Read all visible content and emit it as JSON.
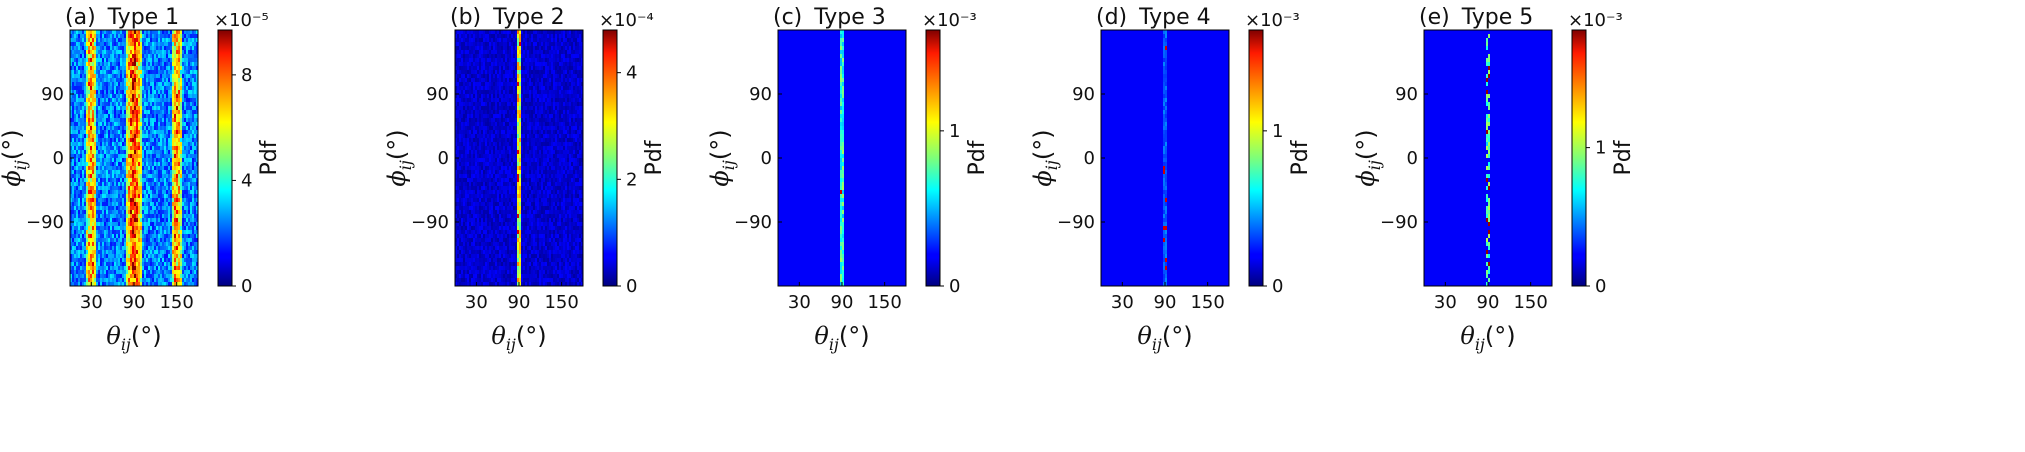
{
  "chart_data": [
    {
      "type": "heatmap",
      "panel_label": "(a)",
      "title": "Type 1",
      "xlabel": "θ_ij(°)",
      "ylabel": "ϕ_ij(°)",
      "xlim": [
        0,
        180
      ],
      "ylim": [
        -180,
        180
      ],
      "x_ticks": [
        30,
        90,
        150
      ],
      "y_ticks": [
        90,
        0,
        -90
      ],
      "y_tick_labels": [
        "90",
        "0",
        "−90"
      ],
      "colorbar": {
        "label": "Pdf",
        "exponent": "×10⁻⁵",
        "ticks": [
          "0",
          "4",
          "8"
        ],
        "tick_values": [
          0,
          4,
          8
        ],
        "max": 9.7,
        "scale": 1e-05
      },
      "pattern": "broad",
      "bands": [
        {
          "theta": 30,
          "width": 6,
          "intensity": 0.45
        },
        {
          "theta": 90,
          "width": 9,
          "intensity": 0.55
        },
        {
          "theta": 150,
          "width": 6,
          "intensity": 0.45
        }
      ],
      "background_level": 0.25
    },
    {
      "type": "heatmap",
      "panel_label": "(b)",
      "title": "Type 2",
      "xlabel": "θ_ij(°)",
      "ylabel": "ϕ_ij(°)",
      "xlim": [
        0,
        180
      ],
      "ylim": [
        -180,
        180
      ],
      "x_ticks": [
        30,
        90,
        150
      ],
      "y_ticks": [
        90,
        0,
        -90
      ],
      "y_tick_labels": [
        "90",
        "0",
        "−90"
      ],
      "colorbar": {
        "label": "Pdf",
        "exponent": "×10⁻⁴",
        "ticks": [
          "0",
          "2",
          "4"
        ],
        "tick_values": [
          0,
          2,
          4
        ],
        "max": 4.8,
        "scale": 0.0001
      },
      "pattern": "line",
      "bands": [
        {
          "theta": 90,
          "width": 1.5,
          "intensity": 0.8
        }
      ],
      "background_level": 0.08
    },
    {
      "type": "heatmap",
      "panel_label": "(c)",
      "title": "Type 3",
      "xlabel": "θ_ij(°)",
      "ylabel": "ϕ_ij(°)",
      "xlim": [
        0,
        180
      ],
      "ylim": [
        -180,
        180
      ],
      "x_ticks": [
        30,
        90,
        150
      ],
      "y_ticks": [
        90,
        0,
        -90
      ],
      "y_tick_labels": [
        "90",
        "0",
        "−90"
      ],
      "colorbar": {
        "label": "Pdf",
        "exponent": "×10⁻³",
        "ticks": [
          "0",
          "1"
        ],
        "tick_values": [
          0,
          1
        ],
        "max": 1.65,
        "scale": 0.001
      },
      "pattern": "line",
      "bands": [
        {
          "theta": 90,
          "width": 1.2,
          "intensity": 0.6
        }
      ],
      "background_level": 0.0
    },
    {
      "type": "heatmap",
      "panel_label": "(d)",
      "title": "Type 4",
      "xlabel": "θ_ij(°)",
      "ylabel": "ϕ_ij(°)",
      "xlim": [
        0,
        180
      ],
      "ylim": [
        -180,
        180
      ],
      "x_ticks": [
        30,
        90,
        150
      ],
      "y_ticks": [
        90,
        0,
        -90
      ],
      "y_tick_labels": [
        "90",
        "0",
        "−90"
      ],
      "colorbar": {
        "label": "Pdf",
        "exponent": "×10⁻³",
        "ticks": [
          "0",
          "1"
        ],
        "tick_values": [
          0,
          1
        ],
        "max": 1.65,
        "scale": 0.001
      },
      "pattern": "line",
      "bands": [
        {
          "theta": 90,
          "width": 0.8,
          "intensity": 0.45
        }
      ],
      "background_level": 0.0
    },
    {
      "type": "heatmap",
      "panel_label": "(e)",
      "title": "Type 5",
      "xlabel": "θ_ij(°)",
      "ylabel": "ϕ_ij(°)",
      "xlim": [
        0,
        180
      ],
      "ylim": [
        -180,
        180
      ],
      "x_ticks": [
        30,
        90,
        150
      ],
      "y_ticks": [
        90,
        0,
        -90
      ],
      "y_tick_labels": [
        "90",
        "0",
        "−90"
      ],
      "colorbar": {
        "label": "Pdf",
        "exponent": "×10⁻³",
        "ticks": [
          "0",
          "1"
        ],
        "tick_values": [
          0,
          1
        ],
        "max": 1.85,
        "scale": 0.001
      },
      "pattern": "dashed",
      "bands": [
        {
          "theta": 90,
          "width": 1.2,
          "intensity": 0.65
        }
      ],
      "background_level": 0.0
    }
  ]
}
